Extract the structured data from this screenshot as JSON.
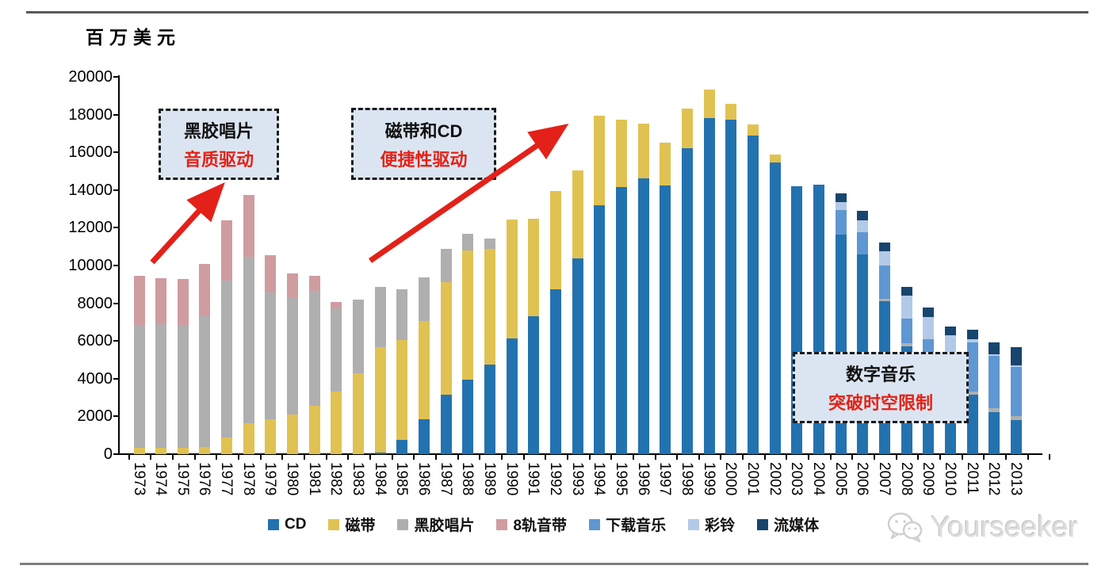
{
  "unit_label": "百万美元",
  "colors": {
    "cd": "#2372B0",
    "cassette": "#E0C252",
    "vinyl": "#AFAFB0",
    "eight_track": "#CF9CA0",
    "download": "#5F97D2",
    "ringtone": "#B3C9E8",
    "streaming": "#17456E",
    "annotation_bg": "#DBE5F1",
    "annotation_red": "#E42217",
    "arrow_red": "#E32119",
    "axis_black": "#000000",
    "top_border": "#595959",
    "bottom_border": "#7F7F7F",
    "watermark_gray": "#D4D4D4"
  },
  "legend": [
    {
      "label": "CD",
      "color_key": "cd"
    },
    {
      "label": "磁带",
      "color_key": "cassette"
    },
    {
      "label": "黑胶唱片",
      "color_key": "vinyl"
    },
    {
      "label": "8轨音带",
      "color_key": "eight_track"
    },
    {
      "label": "下载音乐",
      "color_key": "download"
    },
    {
      "label": "彩铃",
      "color_key": "ringtone"
    },
    {
      "label": "流媒体",
      "color_key": "streaming"
    }
  ],
  "annotations": [
    {
      "name": "vinyl-era",
      "line1": "黑胶唱片",
      "line2": "音质驱动"
    },
    {
      "name": "cassette-cd-era",
      "line1": "磁带和CD",
      "line2": "便捷性驱动"
    },
    {
      "name": "digital-era",
      "line1": "数字音乐",
      "line2": "突破时空限制"
    }
  ],
  "watermark": {
    "text": "Yourseeker",
    "icon": "wechat-icon"
  },
  "chart_data": {
    "type": "bar",
    "stacked": true,
    "title": "",
    "ylabel": "百万美元",
    "xlabel": "",
    "ylim": [
      0,
      20000
    ],
    "y_ticks": [
      0,
      2000,
      4000,
      6000,
      8000,
      10000,
      12000,
      14000,
      16000,
      18000,
      20000
    ],
    "grid": false,
    "legend_position": "bottom",
    "x": [
      1973,
      1974,
      1975,
      1976,
      1977,
      1978,
      1979,
      1980,
      1981,
      1982,
      1983,
      1984,
      1985,
      1986,
      1987,
      1988,
      1989,
      1990,
      1991,
      1992,
      1993,
      1994,
      1995,
      1996,
      1997,
      1998,
      1999,
      2000,
      2001,
      2002,
      2003,
      2004,
      2005,
      2006,
      2007,
      2008,
      2009,
      2010,
      2011,
      2012,
      2013
    ],
    "series": [
      {
        "name": "CD",
        "color_key": "cd",
        "values": [
          0,
          0,
          0,
          0,
          0,
          0,
          0,
          0,
          0,
          0,
          0,
          75,
          770,
          1840,
          3160,
          3970,
          4760,
          6120,
          7330,
          8750,
          10390,
          13210,
          14170,
          14630,
          14240,
          16230,
          17830,
          17730,
          16895,
          15460,
          14200,
          14300,
          11650,
          10600,
          8100,
          5730,
          4300,
          3400,
          3150,
          2230,
          1810
        ]
      },
      {
        "name": "磁带",
        "color_key": "cassette",
        "values": [
          350,
          330,
          330,
          380,
          870,
          1630,
          1840,
          2080,
          2570,
          3330,
          4300,
          5590,
          5280,
          5210,
          5950,
          6840,
          6110,
          6330,
          5145,
          5210,
          4650,
          4750,
          3560,
          2880,
          2290,
          2090,
          1500,
          835,
          585,
          420,
          0,
          0,
          0,
          0,
          0,
          0,
          0,
          0,
          0,
          0,
          0
        ]
      },
      {
        "name": "黑胶唱片",
        "color_key": "vinyl",
        "values": [
          6500,
          6540,
          6520,
          6950,
          8350,
          8820,
          6730,
          6220,
          6080,
          4420,
          3890,
          3195,
          2700,
          2300,
          1770,
          860,
          560,
          0,
          0,
          0,
          0,
          0,
          0,
          0,
          0,
          0,
          0,
          0,
          0,
          0,
          0,
          0,
          0,
          0,
          140,
          140,
          120,
          120,
          180,
          210,
          210
        ]
      },
      {
        "name": "8轨音带",
        "color_key": "eight_track",
        "values": [
          2600,
          2440,
          2450,
          2750,
          3170,
          3310,
          1980,
          1270,
          815,
          305,
          0,
          0,
          0,
          0,
          0,
          0,
          0,
          0,
          0,
          0,
          0,
          0,
          0,
          0,
          0,
          0,
          0,
          0,
          0,
          0,
          0,
          0,
          0,
          0,
          0,
          0,
          0,
          0,
          0,
          0,
          0
        ]
      },
      {
        "name": "下载音乐",
        "color_key": "download",
        "values": [
          0,
          0,
          0,
          0,
          0,
          0,
          0,
          0,
          0,
          0,
          0,
          0,
          0,
          0,
          0,
          0,
          0,
          0,
          0,
          0,
          0,
          0,
          0,
          0,
          0,
          0,
          0,
          0,
          0,
          0,
          0,
          0,
          1300,
          1180,
          1740,
          1320,
          1660,
          1865,
          2600,
          2750,
          2610
        ]
      },
      {
        "name": "彩铃",
        "color_key": "ringtone",
        "values": [
          0,
          0,
          0,
          0,
          0,
          0,
          0,
          0,
          0,
          0,
          0,
          0,
          0,
          0,
          0,
          0,
          0,
          0,
          0,
          0,
          0,
          0,
          0,
          0,
          0,
          0,
          0,
          0,
          0,
          0,
          0,
          0,
          420,
          625,
          765,
          1220,
          1185,
          900,
          150,
          120,
          90
        ]
      },
      {
        "name": "流媒体",
        "color_key": "streaming",
        "values": [
          0,
          0,
          0,
          0,
          0,
          0,
          0,
          0,
          0,
          0,
          0,
          0,
          0,
          0,
          0,
          0,
          0,
          0,
          0,
          0,
          0,
          0,
          0,
          0,
          0,
          0,
          0,
          0,
          0,
          0,
          0,
          0,
          450,
          485,
          460,
          475,
          490,
          490,
          525,
          630,
          940
        ]
      }
    ]
  }
}
